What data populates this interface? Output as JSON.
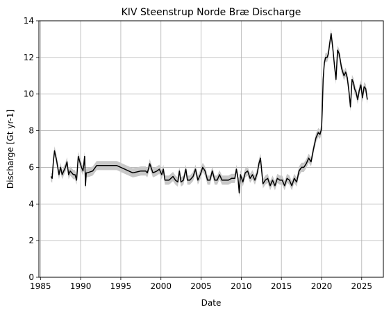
{
  "chart_data": {
    "type": "line",
    "title": "KIV Steenstrup Norde Bræ Discharge",
    "xlabel": "Date",
    "ylabel": "Discharge [Gt yr-1]",
    "xlim": [
      1984.8,
      2027.7
    ],
    "ylim": [
      0,
      14
    ],
    "grid": true,
    "x_ticks": [
      1985,
      1990,
      1995,
      2000,
      2005,
      2010,
      2015,
      2020,
      2025
    ],
    "y_ticks": [
      0,
      2,
      4,
      6,
      8,
      10,
      12,
      14
    ],
    "uncertainty": 0.25,
    "series": [
      {
        "line_color": "#000000",
        "band_color": "#c8c8c8",
        "x": [
          1986.3,
          1986.45,
          1986.6,
          1986.75,
          1987.0,
          1987.3,
          1987.5,
          1987.7,
          1987.9,
          1988.1,
          1988.3,
          1988.5,
          1988.7,
          1988.9,
          1989.1,
          1989.3,
          1989.5,
          1989.7,
          1989.9,
          1990.1,
          1990.3,
          1990.5,
          1990.6,
          1990.7,
          1990.8,
          1991.5,
          1992.0,
          1992.5,
          1993.5,
          1994.5,
          1995.5,
          1996.5,
          1997.5,
          1998.1,
          1998.3,
          1998.5,
          1998.6,
          1999.0,
          1999.5,
          1999.8,
          2000.1,
          2000.3,
          2000.5,
          2001.0,
          2001.5,
          2001.8,
          2002.1,
          2002.3,
          2002.5,
          2002.8,
          2003.1,
          2003.3,
          2003.6,
          2004.0,
          2004.3,
          2004.6,
          2004.9,
          2005.2,
          2005.5,
          2005.8,
          2006.1,
          2006.4,
          2006.7,
          2007.0,
          2007.3,
          2007.6,
          2008.0,
          2008.4,
          2008.8,
          2009.2,
          2009.4,
          2009.6,
          2009.75,
          2009.9,
          2010.2,
          2010.5,
          2010.8,
          2011.1,
          2011.4,
          2011.7,
          2012.0,
          2012.2,
          2012.4,
          2012.7,
          2013.0,
          2013.3,
          2013.6,
          2013.9,
          2014.2,
          2014.5,
          2014.8,
          2015.1,
          2015.4,
          2015.7,
          2016.0,
          2016.3,
          2016.6,
          2016.9,
          2017.2,
          2017.5,
          2017.8,
          2018.1,
          2018.4,
          2018.7,
          2019.0,
          2019.3,
          2019.6,
          2019.8,
          2020.0,
          2020.1,
          2020.2,
          2020.35,
          2020.5,
          2020.7,
          2020.85,
          2021.0,
          2021.2,
          2021.4,
          2021.6,
          2021.8,
          2022.0,
          2022.2,
          2022.5,
          2022.8,
          2023.0,
          2023.2,
          2023.4,
          2023.6,
          2023.8,
          2024.0,
          2024.1,
          2024.3,
          2024.5,
          2024.7,
          2024.9,
          2025.1,
          2025.3,
          2025.5,
          2025.7
        ],
        "y": [
          5.5,
          5.4,
          6.3,
          6.9,
          6.4,
          5.6,
          6.0,
          5.6,
          5.8,
          6.0,
          6.3,
          5.6,
          5.8,
          5.7,
          5.6,
          5.6,
          5.3,
          6.6,
          6.3,
          6.0,
          5.8,
          6.6,
          5.0,
          5.7,
          5.7,
          5.8,
          6.1,
          6.1,
          6.1,
          6.1,
          5.9,
          5.7,
          5.8,
          5.8,
          5.7,
          6.0,
          6.2,
          5.7,
          5.8,
          5.9,
          5.6,
          5.9,
          5.3,
          5.3,
          5.5,
          5.3,
          5.2,
          5.8,
          5.2,
          5.3,
          5.9,
          5.3,
          5.3,
          5.5,
          5.9,
          5.3,
          5.6,
          6.0,
          5.8,
          5.3,
          5.3,
          5.8,
          5.3,
          5.3,
          5.6,
          5.3,
          5.3,
          5.3,
          5.4,
          5.4,
          5.9,
          5.4,
          4.6,
          5.6,
          5.2,
          5.7,
          5.8,
          5.4,
          5.6,
          5.3,
          5.7,
          6.2,
          6.5,
          5.1,
          5.3,
          5.4,
          5.0,
          5.3,
          5.0,
          5.4,
          5.3,
          5.3,
          5.0,
          5.4,
          5.3,
          5.0,
          5.4,
          5.2,
          5.8,
          6.0,
          6.0,
          6.2,
          6.5,
          6.3,
          7.0,
          7.6,
          7.9,
          7.8,
          8.1,
          9.2,
          10.8,
          11.7,
          12.0,
          12.0,
          12.2,
          12.7,
          13.3,
          12.5,
          11.6,
          10.8,
          12.4,
          12.2,
          11.4,
          11.0,
          11.2,
          10.9,
          10.2,
          9.3,
          10.8,
          10.6,
          10.3,
          10.1,
          9.7,
          10.2,
          10.5,
          9.8,
          10.4,
          10.3,
          9.7
        ]
      }
    ]
  }
}
